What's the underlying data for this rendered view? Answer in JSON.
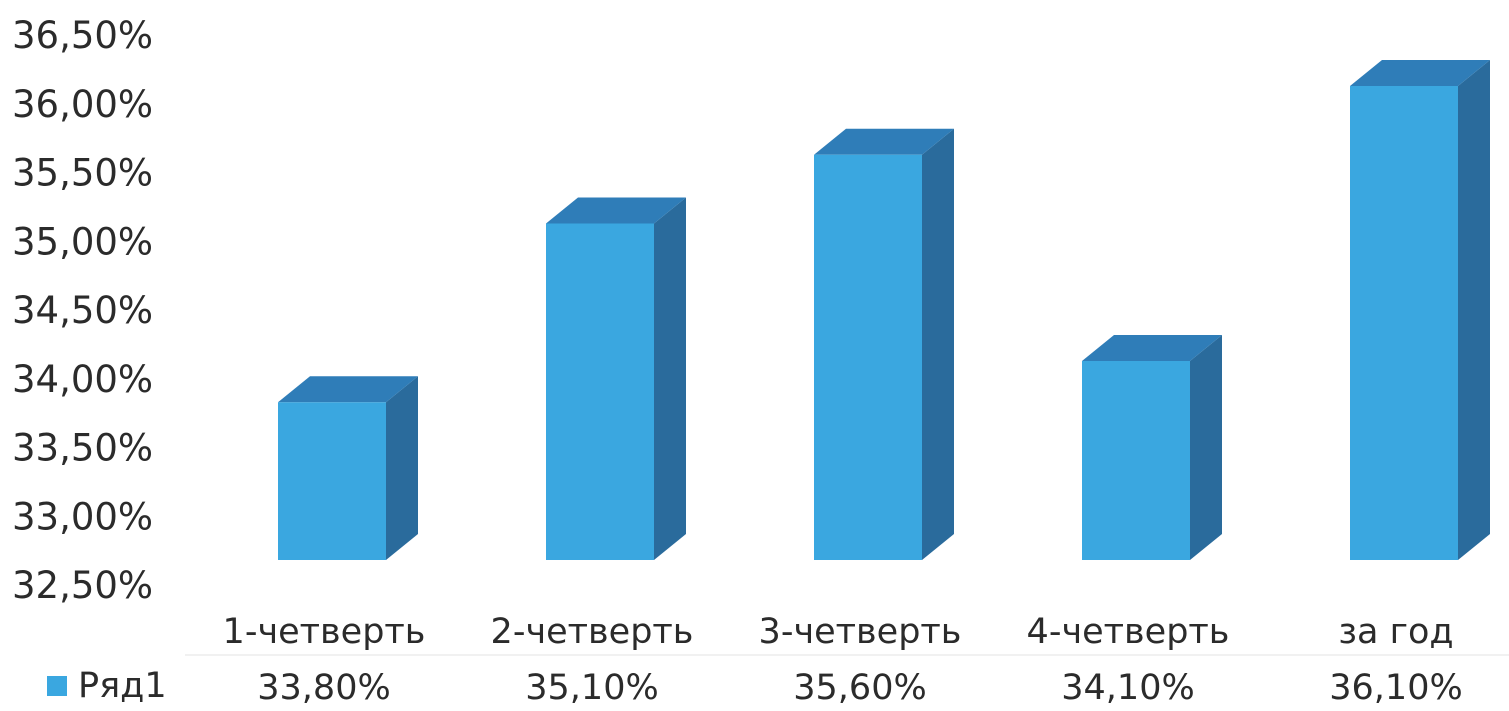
{
  "chart_data": {
    "type": "bar",
    "categories": [
      "1-четверть",
      "2-четверть",
      "3-четверть",
      "4-четверть",
      "за год"
    ],
    "series": [
      {
        "name": "Ряд1",
        "values": [
          33.8,
          35.1,
          35.6,
          34.1,
          36.1
        ]
      }
    ],
    "value_labels": [
      "33,80%",
      "35,10%",
      "35,60%",
      "34,10%",
      "36,10%"
    ],
    "y_ticks": [
      "32,50%",
      "33,00%",
      "33,50%",
      "34,00%",
      "34,50%",
      "35,00%",
      "35,50%",
      "36,00%",
      "36,50%"
    ],
    "ylim": [
      32.5,
      36.5
    ],
    "grid": false,
    "data_table_below": true,
    "colors": {
      "bar_front": "#3aa7e0",
      "bar_side": "#2a6b9c",
      "bar_top": "#2f7db8"
    }
  }
}
